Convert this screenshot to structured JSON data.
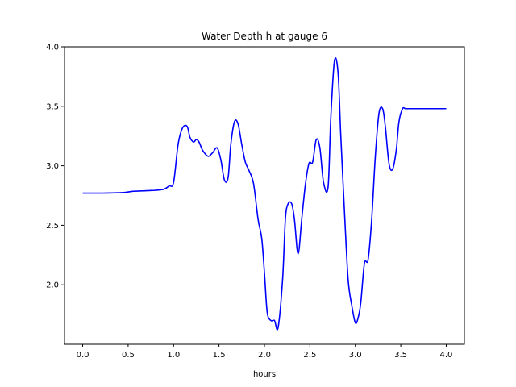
{
  "chart_data": {
    "type": "line",
    "title": "Water Depth h at gauge 6",
    "xlabel": "hours",
    "ylabel": "",
    "xlim": [
      -0.2,
      4.2
    ],
    "ylim": [
      1.5,
      4.0
    ],
    "xticks": [
      0.0,
      0.5,
      1.0,
      1.5,
      2.0,
      2.5,
      3.0,
      3.5,
      4.0
    ],
    "xtick_labels": [
      "0.0",
      "0.5",
      "1.0",
      "1.5",
      "2.0",
      "2.5",
      "3.0",
      "3.5",
      "4.0"
    ],
    "yticks": [
      2.0,
      2.5,
      3.0,
      3.5,
      4.0
    ],
    "ytick_labels": [
      "2.0",
      "2.5",
      "3.0",
      "3.5",
      "4.0"
    ],
    "grid": false,
    "line_color": "#0000ff",
    "series": [
      {
        "x": [
          0.0,
          0.2,
          0.45,
          0.55,
          0.7,
          0.88,
          0.95,
          1.0,
          1.05,
          1.1,
          1.15,
          1.18,
          1.22,
          1.25,
          1.28,
          1.32,
          1.38,
          1.43,
          1.48,
          1.52,
          1.56,
          1.6,
          1.63,
          1.67,
          1.71,
          1.75,
          1.79,
          1.83,
          1.88,
          1.93,
          1.97,
          2.0,
          2.03,
          2.07,
          2.11,
          2.15,
          2.2,
          2.23,
          2.26,
          2.3,
          2.33,
          2.37,
          2.41,
          2.45,
          2.49,
          2.53,
          2.57,
          2.61,
          2.65,
          2.7,
          2.73,
          2.77,
          2.81,
          2.84,
          2.88,
          2.92,
          2.96,
          3.0,
          3.03,
          3.06,
          3.1,
          3.14,
          3.18,
          3.22,
          3.26,
          3.3,
          3.33,
          3.37,
          3.41,
          3.45,
          3.48,
          3.52,
          3.55,
          3.58,
          3.62,
          3.66,
          3.7,
          3.74,
          3.78,
          3.82,
          3.86,
          3.9,
          3.95,
          4.0
        ],
        "y": [
          2.77,
          2.77,
          2.775,
          2.785,
          2.79,
          2.8,
          2.83,
          2.86,
          3.18,
          3.32,
          3.33,
          3.24,
          3.2,
          3.22,
          3.2,
          3.13,
          3.08,
          3.11,
          3.15,
          3.05,
          2.88,
          2.9,
          3.18,
          3.37,
          3.35,
          3.18,
          3.03,
          2.96,
          2.85,
          2.55,
          2.39,
          2.1,
          1.77,
          1.7,
          1.7,
          1.64,
          2.05,
          2.55,
          2.68,
          2.68,
          2.55,
          2.26,
          2.55,
          2.84,
          3.02,
          3.03,
          3.22,
          3.15,
          2.86,
          2.82,
          3.4,
          3.88,
          3.78,
          3.25,
          2.62,
          2.05,
          1.83,
          1.68,
          1.72,
          1.85,
          2.18,
          2.21,
          2.55,
          3.08,
          3.44,
          3.48,
          3.33,
          3.02,
          2.97,
          3.13,
          3.37,
          3.48,
          3.48,
          3.48,
          3.48,
          3.48,
          3.48,
          3.48,
          3.48,
          3.48,
          3.48,
          3.48,
          3.48,
          3.48
        ]
      }
    ]
  }
}
